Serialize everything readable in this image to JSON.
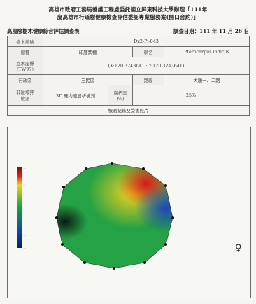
{
  "header": {
    "title_line1": "高雄市政府工務局養護工程處委託國立屏東科技大學辦理「111年",
    "title_line2": "度高雄市行道樹健康檢查評估委託專業服務案(開口合約)」",
    "form_title": "高風險樹木健康綜合評估調查表",
    "date_label": "調查日期：111 年 11 月 26 日"
  },
  "form": {
    "row1": {
      "label": "樹木編號",
      "value": "Dx2-Pi-043"
    },
    "row2": {
      "label": "樹種",
      "value": "印度紫檀",
      "label2": "學名",
      "value2": "Pterocarpus indicus"
    },
    "row3": {
      "label_a": "立木座標",
      "label_b": "(TW97)",
      "value": "(X:120.3243641 · Y:120.3243641)"
    },
    "row4": {
      "label": "行政區",
      "value": "三民區",
      "label2": "路段",
      "value2": "大順一、二路"
    },
    "row5": {
      "label_a": "非破壞評",
      "label_b": "檢測",
      "value": "3D 應力波層析檢測",
      "label2_a": "腐朽率",
      "label2_b": "(%)",
      "value2": "25%"
    },
    "photo_header": "檢測紀錄及受害照片"
  },
  "figure": {
    "marker_text": "♀"
  }
}
